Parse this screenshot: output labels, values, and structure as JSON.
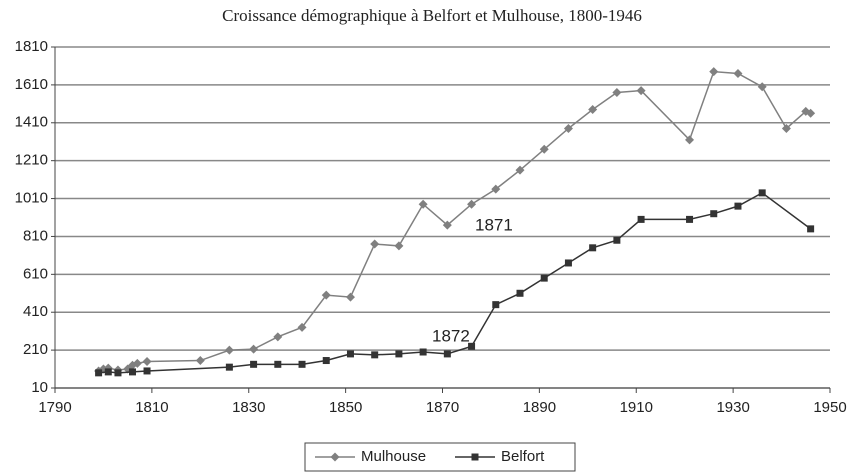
{
  "chart_data": {
    "type": "line",
    "title": "Croissance démographique à Belfort et Mulhouse, 1800-1946",
    "xlim": [
      1790,
      1950
    ],
    "xticks": [
      1790,
      1810,
      1830,
      1850,
      1870,
      1890,
      1910,
      1930,
      1950
    ],
    "ylim": [
      10,
      1810
    ],
    "yticks": [
      10,
      210,
      410,
      610,
      810,
      1010,
      1210,
      1410,
      1610,
      1810
    ],
    "grid": true,
    "annotations": [
      "1871",
      "1872"
    ],
    "series": [
      {
        "name": "Mulhouse",
        "color": "#808080",
        "marker": "diamond",
        "x": [
          1799,
          1800,
          1801,
          1803,
          1805,
          1806,
          1807,
          1809,
          1820,
          1826,
          1831,
          1836,
          1841,
          1846,
          1851,
          1856,
          1861,
          1866,
          1871,
          1876,
          1881,
          1886,
          1891,
          1896,
          1901,
          1906,
          1911,
          1921,
          1926,
          1931,
          1936,
          1941,
          1945,
          1946
        ],
        "values": [
          100,
          110,
          115,
          105,
          110,
          130,
          140,
          150,
          155,
          210,
          215,
          280,
          330,
          500,
          490,
          770,
          760,
          980,
          870,
          980,
          1060,
          1160,
          1270,
          1380,
          1480,
          1570,
          1580,
          1320,
          1680,
          1670,
          1600,
          1380,
          1470,
          1460
        ]
      },
      {
        "name": "Belfort",
        "color": "#333333",
        "marker": "square",
        "x": [
          1799,
          1801,
          1803,
          1806,
          1809,
          1826,
          1831,
          1836,
          1841,
          1846,
          1851,
          1856,
          1861,
          1866,
          1871,
          1876,
          1881,
          1886,
          1891,
          1896,
          1901,
          1906,
          1911,
          1921,
          1926,
          1931,
          1936,
          1946
        ],
        "values": [
          90,
          95,
          90,
          95,
          100,
          120,
          135,
          135,
          135,
          155,
          190,
          185,
          190,
          200,
          190,
          230,
          450,
          510,
          590,
          670,
          750,
          790,
          900,
          900,
          930,
          970,
          1040,
          850
        ]
      }
    ]
  }
}
